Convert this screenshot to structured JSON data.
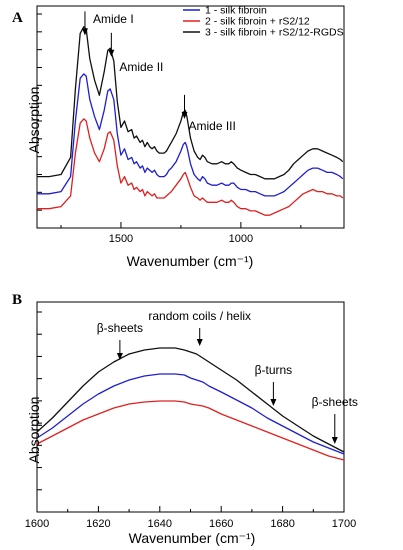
{
  "chart_data": [
    {
      "panel": "A",
      "type": "line",
      "xlabel": "Wavenumber (cm⁻¹)",
      "ylabel": "Absorption",
      "xlim": [
        1850,
        570
      ],
      "ylim": [
        0,
        1.0
      ],
      "x_ticks": [
        1500,
        1000
      ],
      "grid": false,
      "legend_position": "top-right",
      "series": [
        {
          "name": "1 - silk fibroin",
          "color": "#1f1fd0",
          "offset": 0.0,
          "x": [
            1850,
            1800,
            1750,
            1710,
            1690,
            1670,
            1655,
            1645,
            1630,
            1610,
            1590,
            1570,
            1555,
            1545,
            1530,
            1515,
            1500,
            1485,
            1470,
            1455,
            1445,
            1435,
            1420,
            1410,
            1400,
            1390,
            1380,
            1370,
            1360,
            1350,
            1340,
            1330,
            1320,
            1310,
            1300,
            1290,
            1270,
            1250,
            1240,
            1232,
            1225,
            1210,
            1195,
            1180,
            1170,
            1160,
            1150,
            1140,
            1120,
            1100,
            1080,
            1065,
            1050,
            1040,
            1030,
            1015,
            1000,
            980,
            960,
            940,
            920,
            900,
            880,
            860,
            840,
            820,
            800,
            780,
            760,
            740,
            720,
            700,
            680,
            660,
            640,
            620,
            600,
            585,
            575
          ],
          "y": [
            0.16,
            0.16,
            0.17,
            0.24,
            0.5,
            0.7,
            0.72,
            0.71,
            0.6,
            0.52,
            0.46,
            0.55,
            0.64,
            0.65,
            0.6,
            0.44,
            0.34,
            0.37,
            0.32,
            0.33,
            0.3,
            0.31,
            0.28,
            0.29,
            0.26,
            0.28,
            0.27,
            0.26,
            0.27,
            0.25,
            0.24,
            0.24,
            0.24,
            0.25,
            0.27,
            0.28,
            0.31,
            0.36,
            0.39,
            0.4,
            0.38,
            0.3,
            0.25,
            0.23,
            0.22,
            0.24,
            0.23,
            0.21,
            0.2,
            0.2,
            0.21,
            0.2,
            0.2,
            0.21,
            0.21,
            0.19,
            0.18,
            0.18,
            0.17,
            0.17,
            0.16,
            0.15,
            0.15,
            0.15,
            0.16,
            0.17,
            0.19,
            0.21,
            0.23,
            0.25,
            0.27,
            0.28,
            0.28,
            0.27,
            0.26,
            0.26,
            0.25,
            0.24,
            0.23
          ]
        },
        {
          "name": "2 - silk fibroin + rS2/12",
          "color": "#e02020",
          "offset": -0.05,
          "x": [
            1850,
            1800,
            1750,
            1710,
            1690,
            1670,
            1655,
            1645,
            1630,
            1610,
            1590,
            1570,
            1555,
            1545,
            1530,
            1515,
            1500,
            1485,
            1470,
            1455,
            1445,
            1435,
            1420,
            1410,
            1400,
            1390,
            1380,
            1370,
            1360,
            1350,
            1340,
            1330,
            1320,
            1310,
            1300,
            1290,
            1270,
            1250,
            1240,
            1232,
            1225,
            1210,
            1195,
            1180,
            1170,
            1160,
            1150,
            1140,
            1120,
            1100,
            1080,
            1065,
            1050,
            1040,
            1030,
            1015,
            1000,
            980,
            960,
            940,
            920,
            900,
            880,
            860,
            840,
            820,
            800,
            780,
            760,
            740,
            720,
            700,
            680,
            660,
            640,
            620,
            600,
            585,
            575
          ],
          "y": [
            0.14,
            0.14,
            0.15,
            0.2,
            0.4,
            0.54,
            0.56,
            0.55,
            0.47,
            0.4,
            0.36,
            0.42,
            0.49,
            0.5,
            0.46,
            0.34,
            0.26,
            0.29,
            0.25,
            0.26,
            0.23,
            0.24,
            0.22,
            0.23,
            0.2,
            0.22,
            0.21,
            0.2,
            0.21,
            0.19,
            0.19,
            0.19,
            0.19,
            0.2,
            0.21,
            0.22,
            0.25,
            0.28,
            0.3,
            0.31,
            0.29,
            0.24,
            0.2,
            0.19,
            0.18,
            0.19,
            0.18,
            0.17,
            0.17,
            0.17,
            0.18,
            0.17,
            0.17,
            0.18,
            0.17,
            0.15,
            0.14,
            0.14,
            0.13,
            0.13,
            0.12,
            0.11,
            0.11,
            0.12,
            0.13,
            0.14,
            0.15,
            0.17,
            0.19,
            0.21,
            0.22,
            0.23,
            0.22,
            0.22,
            0.21,
            0.21,
            0.2,
            0.2,
            0.19
          ]
        },
        {
          "name": "3 - silk fibroin + rS2/12-RGDS",
          "color": "#111111",
          "offset": 0.05,
          "x": [
            1850,
            1800,
            1750,
            1710,
            1690,
            1670,
            1655,
            1645,
            1630,
            1610,
            1590,
            1570,
            1555,
            1545,
            1530,
            1515,
            1500,
            1485,
            1470,
            1455,
            1445,
            1435,
            1420,
            1410,
            1400,
            1390,
            1380,
            1370,
            1360,
            1350,
            1340,
            1330,
            1320,
            1310,
            1300,
            1290,
            1270,
            1250,
            1240,
            1232,
            1225,
            1210,
            1195,
            1180,
            1170,
            1160,
            1150,
            1140,
            1120,
            1100,
            1080,
            1065,
            1050,
            1040,
            1030,
            1015,
            1000,
            980,
            960,
            940,
            920,
            900,
            880,
            860,
            840,
            820,
            800,
            780,
            760,
            740,
            720,
            700,
            680,
            660,
            640,
            620,
            600,
            585,
            575
          ],
          "y": [
            0.19,
            0.19,
            0.2,
            0.28,
            0.6,
            0.86,
            0.89,
            0.88,
            0.74,
            0.64,
            0.57,
            0.68,
            0.78,
            0.79,
            0.73,
            0.54,
            0.42,
            0.45,
            0.4,
            0.41,
            0.37,
            0.38,
            0.35,
            0.36,
            0.33,
            0.35,
            0.33,
            0.32,
            0.33,
            0.31,
            0.3,
            0.3,
            0.3,
            0.31,
            0.33,
            0.35,
            0.39,
            0.45,
            0.49,
            0.5,
            0.47,
            0.37,
            0.31,
            0.28,
            0.27,
            0.29,
            0.28,
            0.26,
            0.25,
            0.25,
            0.26,
            0.25,
            0.25,
            0.26,
            0.25,
            0.23,
            0.22,
            0.21,
            0.2,
            0.2,
            0.19,
            0.18,
            0.18,
            0.18,
            0.19,
            0.2,
            0.22,
            0.25,
            0.27,
            0.29,
            0.31,
            0.32,
            0.32,
            0.31,
            0.3,
            0.29,
            0.28,
            0.27,
            0.26
          ]
        }
      ],
      "annotations": [
        {
          "text": "Amide I",
          "x": 1650,
          "arrow_to_y": 0.9
        },
        {
          "text": "Amide II",
          "x": 1540,
          "arrow_to_y": 0.8
        },
        {
          "text": "Amide III",
          "x": 1235,
          "arrow_to_y": 0.51
        }
      ]
    },
    {
      "panel": "B",
      "type": "line",
      "xlabel": "Wavenumber (cm⁻¹)",
      "ylabel": "Absorption",
      "xlim": [
        1600,
        1700
      ],
      "ylim": [
        0,
        1.0
      ],
      "x_ticks": [
        1600,
        1620,
        1640,
        1660,
        1680,
        1700
      ],
      "grid": false,
      "series": [
        {
          "name": "1 - silk fibroin",
          "color": "#1f1fd0",
          "x": [
            1600,
            1605,
            1610,
            1615,
            1620,
            1625,
            1630,
            1635,
            1640,
            1645,
            1648,
            1650,
            1652,
            1654,
            1656,
            1660,
            1665,
            1670,
            1675,
            1680,
            1685,
            1690,
            1695,
            1700
          ],
          "y": [
            0.37,
            0.42,
            0.48,
            0.54,
            0.59,
            0.63,
            0.66,
            0.68,
            0.69,
            0.69,
            0.685,
            0.67,
            0.66,
            0.65,
            0.63,
            0.6,
            0.56,
            0.52,
            0.47,
            0.43,
            0.39,
            0.35,
            0.32,
            0.29
          ]
        },
        {
          "name": "2 - silk fibroin + rS2/12",
          "color": "#e02020",
          "x": [
            1600,
            1605,
            1610,
            1615,
            1620,
            1625,
            1630,
            1635,
            1640,
            1645,
            1648,
            1650,
            1652,
            1654,
            1656,
            1660,
            1665,
            1670,
            1675,
            1680,
            1685,
            1690,
            1695,
            1700
          ],
          "y": [
            0.34,
            0.38,
            0.42,
            0.46,
            0.49,
            0.52,
            0.54,
            0.55,
            0.555,
            0.555,
            0.55,
            0.54,
            0.535,
            0.53,
            0.52,
            0.49,
            0.46,
            0.43,
            0.4,
            0.37,
            0.34,
            0.31,
            0.28,
            0.26
          ]
        },
        {
          "name": "3 - silk fibroin + rS2/12-RGDS",
          "color": "#111111",
          "x": [
            1600,
            1605,
            1610,
            1615,
            1620,
            1625,
            1630,
            1635,
            1640,
            1645,
            1648,
            1650,
            1652,
            1654,
            1656,
            1660,
            1665,
            1670,
            1675,
            1680,
            1685,
            1690,
            1695,
            1700
          ],
          "y": [
            0.4,
            0.47,
            0.55,
            0.63,
            0.7,
            0.75,
            0.79,
            0.81,
            0.82,
            0.82,
            0.81,
            0.8,
            0.79,
            0.77,
            0.75,
            0.71,
            0.66,
            0.6,
            0.54,
            0.48,
            0.43,
            0.38,
            0.34,
            0.3
          ]
        }
      ],
      "annotations": [
        {
          "text": "β-sheets",
          "x": 1627,
          "arrow_to_y": 0.76,
          "label_y": 0.9
        },
        {
          "text": "random coils / helix",
          "x": 1653,
          "arrow_to_y": 0.83,
          "label_y": 0.96
        },
        {
          "text": "β-turns",
          "x": 1677,
          "arrow_to_y": 0.53,
          "label_y": 0.69
        },
        {
          "text": "β-sheets",
          "x": 1697,
          "arrow_to_y": 0.34,
          "label_y": 0.53
        }
      ]
    }
  ]
}
